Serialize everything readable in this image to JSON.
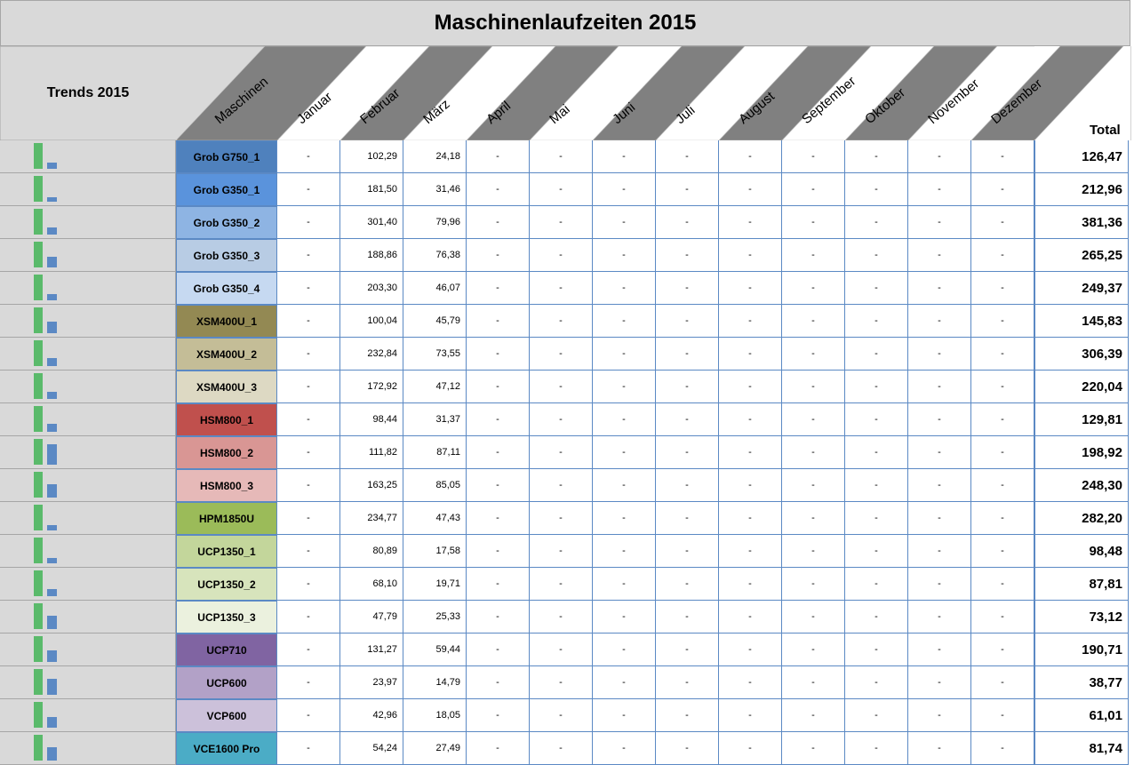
{
  "title": "Maschinenlaufzeiten 2015",
  "header": {
    "trends_label": "Trends 2015",
    "machines_label": "Maschinen",
    "months": [
      "Januar",
      "Februar",
      "März",
      "April",
      "Mai",
      "Juni",
      "Juli",
      "August",
      "September",
      "Oktober",
      "November",
      "Dezember"
    ],
    "total_label": "Total"
  },
  "colors": {
    "header_dark": "#808080",
    "header_light": "#ffffff",
    "grid_line": "#5b89c4",
    "trend_bg": "#d9d9d9",
    "trend_green": "#5aba6b",
    "trend_blue": "#5b89c4"
  },
  "rows": [
    {
      "machine": "Grob G750_1",
      "color": "#4f81bd",
      "text": "#000000",
      "feb": "102,29",
      "mar": "24,18",
      "total": "126,47",
      "trend": [
        1.0,
        0.24
      ]
    },
    {
      "machine": "Grob G350_1",
      "color": "#5a93dc",
      "text": "#000000",
      "feb": "181,50",
      "mar": "31,46",
      "total": "212,96",
      "trend": [
        1.0,
        0.17
      ]
    },
    {
      "machine": "Grob G350_2",
      "color": "#8eb4e3",
      "text": "#000000",
      "feb": "301,40",
      "mar": "79,96",
      "total": "381,36",
      "trend": [
        1.0,
        0.27
      ]
    },
    {
      "machine": "Grob G350_3",
      "color": "#b8cce4",
      "text": "#000000",
      "feb": "188,86",
      "mar": "76,38",
      "total": "265,25",
      "trend": [
        1.0,
        0.4
      ]
    },
    {
      "machine": "Grob G350_4",
      "color": "#c6d9f1",
      "text": "#000000",
      "feb": "203,30",
      "mar": "46,07",
      "total": "249,37",
      "trend": [
        1.0,
        0.23
      ]
    },
    {
      "machine": "XSM400U_1",
      "color": "#938953",
      "text": "#000000",
      "feb": "100,04",
      "mar": "45,79",
      "total": "145,83",
      "trend": [
        1.0,
        0.46
      ]
    },
    {
      "machine": "XSM400U_2",
      "color": "#c4bd97",
      "text": "#000000",
      "feb": "232,84",
      "mar": "73,55",
      "total": "306,39",
      "trend": [
        1.0,
        0.32
      ]
    },
    {
      "machine": "XSM400U_3",
      "color": "#ddd9c3",
      "text": "#000000",
      "feb": "172,92",
      "mar": "47,12",
      "total": "220,04",
      "trend": [
        1.0,
        0.27
      ]
    },
    {
      "machine": "HSM800_1",
      "color": "#c0504d",
      "text": "#000000",
      "feb": "98,44",
      "mar": "31,37",
      "total": "129,81",
      "trend": [
        1.0,
        0.32
      ]
    },
    {
      "machine": "HSM800_2",
      "color": "#d99694",
      "text": "#000000",
      "feb": "111,82",
      "mar": "87,11",
      "total": "198,92",
      "trend": [
        1.0,
        0.78
      ]
    },
    {
      "machine": "HSM800_3",
      "color": "#e6b9b8",
      "text": "#000000",
      "feb": "163,25",
      "mar": "85,05",
      "total": "248,30",
      "trend": [
        1.0,
        0.52
      ]
    },
    {
      "machine": "HPM1850U",
      "color": "#9bbb59",
      "text": "#000000",
      "feb": "234,77",
      "mar": "47,43",
      "total": "282,20",
      "trend": [
        1.0,
        0.2
      ]
    },
    {
      "machine": "UCP1350_1",
      "color": "#c3d69b",
      "text": "#000000",
      "feb": "80,89",
      "mar": "17,58",
      "total": "98,48",
      "trend": [
        1.0,
        0.22
      ]
    },
    {
      "machine": "UCP1350_2",
      "color": "#d7e4bc",
      "text": "#000000",
      "feb": "68,10",
      "mar": "19,71",
      "total": "87,81",
      "trend": [
        1.0,
        0.29
      ]
    },
    {
      "machine": "UCP1350_3",
      "color": "#ebf1de",
      "text": "#000000",
      "feb": "47,79",
      "mar": "25,33",
      "total": "73,12",
      "trend": [
        1.0,
        0.53
      ]
    },
    {
      "machine": "UCP710",
      "color": "#8064a2",
      "text": "#000000",
      "feb": "131,27",
      "mar": "59,44",
      "total": "190,71",
      "trend": [
        1.0,
        0.45
      ]
    },
    {
      "machine": "UCP600",
      "color": "#b2a1c7",
      "text": "#000000",
      "feb": "23,97",
      "mar": "14,79",
      "total": "38,77",
      "trend": [
        1.0,
        0.62
      ]
    },
    {
      "machine": "VCP600",
      "color": "#ccc1da",
      "text": "#000000",
      "feb": "42,96",
      "mar": "18,05",
      "total": "61,01",
      "trend": [
        1.0,
        0.42
      ]
    },
    {
      "machine": "VCE1600 Pro",
      "color": "#4bacc6",
      "text": "#000000",
      "feb": "54,24",
      "mar": "27,49",
      "total": "81,74",
      "trend": [
        1.0,
        0.51
      ]
    }
  ],
  "dash": "-"
}
